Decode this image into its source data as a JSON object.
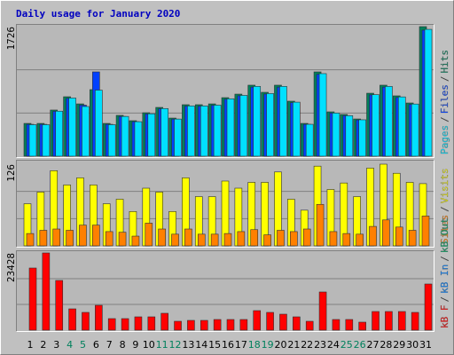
{
  "chart_data": [
    {
      "type": "bar",
      "title": "Daily usage for January 2020",
      "ylim": [
        0,
        1726
      ],
      "yticks": [
        1726
      ],
      "legend_separator": "/",
      "series": [
        {
          "name": "Pages",
          "color": "#00e0ff",
          "values": [
            420,
            420,
            600,
            775,
            662,
            880,
            420,
            530,
            460,
            565,
            635,
            495,
            670,
            670,
            680,
            765,
            810,
            930,
            835,
            930,
            720,
            425,
            1100,
            575,
            540,
            485,
            820,
            930,
            790,
            695,
            1690
          ]
        },
        {
          "name": "Files",
          "color": "#0040ff",
          "values": [
            425,
            425,
            598,
            770,
            680,
            1123,
            425,
            530,
            460,
            563,
            632,
            494,
            667,
            667,
            678,
            759,
            805,
            920,
            828,
            920,
            713,
            425,
            1092,
            575,
            541,
            483,
            816,
            920,
            782,
            690,
            1679
          ]
        },
        {
          "name": "Hits",
          "color": "#00805c",
          "values": [
            437,
            437,
            615,
            792,
            697,
            887,
            437,
            544,
            473,
            579,
            650,
            508,
            686,
            686,
            697,
            780,
            827,
            946,
            851,
            946,
            733,
            437,
            1123,
            591,
            556,
            496,
            839,
            946,
            804,
            709,
            1726
          ]
        }
      ]
    },
    {
      "type": "bar",
      "ylim": [
        0,
        126
      ],
      "yticks": [
        126
      ],
      "legend_separator": "/",
      "series": [
        {
          "name": "Sites",
          "color": "#ff8000",
          "values": [
            19,
            24,
            26,
            24,
            32,
            32,
            22,
            21,
            15,
            35,
            26,
            18,
            26,
            18,
            18,
            19,
            22,
            25,
            17,
            24,
            22,
            26,
            64,
            22,
            19,
            18,
            30,
            40,
            29,
            24,
            46
          ]
        },
        {
          "name": "Visits",
          "color": "#ffff00",
          "values": [
            65,
            83,
            116,
            94,
            105,
            94,
            65,
            72,
            53,
            89,
            83,
            53,
            105,
            76,
            76,
            100,
            89,
            98,
            98,
            114,
            72,
            55,
            123,
            87,
            97,
            76,
            120,
            126,
            112,
            98,
            96
          ]
        }
      ]
    },
    {
      "type": "bar",
      "ylim": [
        0,
        23428
      ],
      "yticks": [
        23428
      ],
      "legend_separator": "/",
      "categories": [
        "1",
        "2",
        "3",
        "4",
        "5",
        "6",
        "7",
        "8",
        "9",
        "10",
        "11",
        "12",
        "13",
        "14",
        "15",
        "16",
        "17",
        "18",
        "19",
        "20",
        "21",
        "22",
        "23",
        "24",
        "25",
        "26",
        "27",
        "28",
        "29",
        "30",
        "31"
      ],
      "category_colors": [
        "#000000",
        "#000000",
        "#000000",
        "#00805c",
        "#00805c",
        "#000000",
        "#000000",
        "#000000",
        "#000000",
        "#000000",
        "#00805c",
        "#00805c",
        "#000000",
        "#000000",
        "#000000",
        "#000000",
        "#000000",
        "#00805c",
        "#00805c",
        "#000000",
        "#000000",
        "#000000",
        "#000000",
        "#000000",
        "#00805c",
        "#00805c",
        "#000000",
        "#000000",
        "#000000",
        "#000000",
        "#000000"
      ],
      "series": [
        {
          "name": "kB F",
          "color": "#ff0000",
          "values": [
            18851,
            23428,
            15081,
            6463,
            5386,
            7540,
            3501,
            3501,
            4040,
            4040,
            5117,
            2693,
            2962,
            2962,
            3232,
            3232,
            3232,
            5925,
            5386,
            4847,
            4040,
            2693,
            11580,
            3232,
            3232,
            2424,
            5655,
            5655,
            5655,
            5386,
            14004
          ]
        },
        {
          "name": "kB In",
          "color": "#0080ff",
          "values": [
            null,
            null,
            null,
            null,
            null,
            null,
            null,
            null,
            null,
            null,
            null,
            null,
            null,
            null,
            null,
            null,
            null,
            null,
            null,
            null,
            null,
            null,
            null,
            null,
            null,
            null,
            null,
            null,
            null,
            null,
            null
          ]
        },
        {
          "name": "kB Out",
          "color": "#00a060",
          "values": [
            null,
            null,
            null,
            null,
            null,
            null,
            null,
            null,
            null,
            null,
            null,
            null,
            null,
            null,
            null,
            null,
            null,
            null,
            null,
            null,
            null,
            null,
            null,
            null,
            null,
            null,
            null,
            null,
            null,
            null,
            null
          ]
        }
      ]
    }
  ]
}
